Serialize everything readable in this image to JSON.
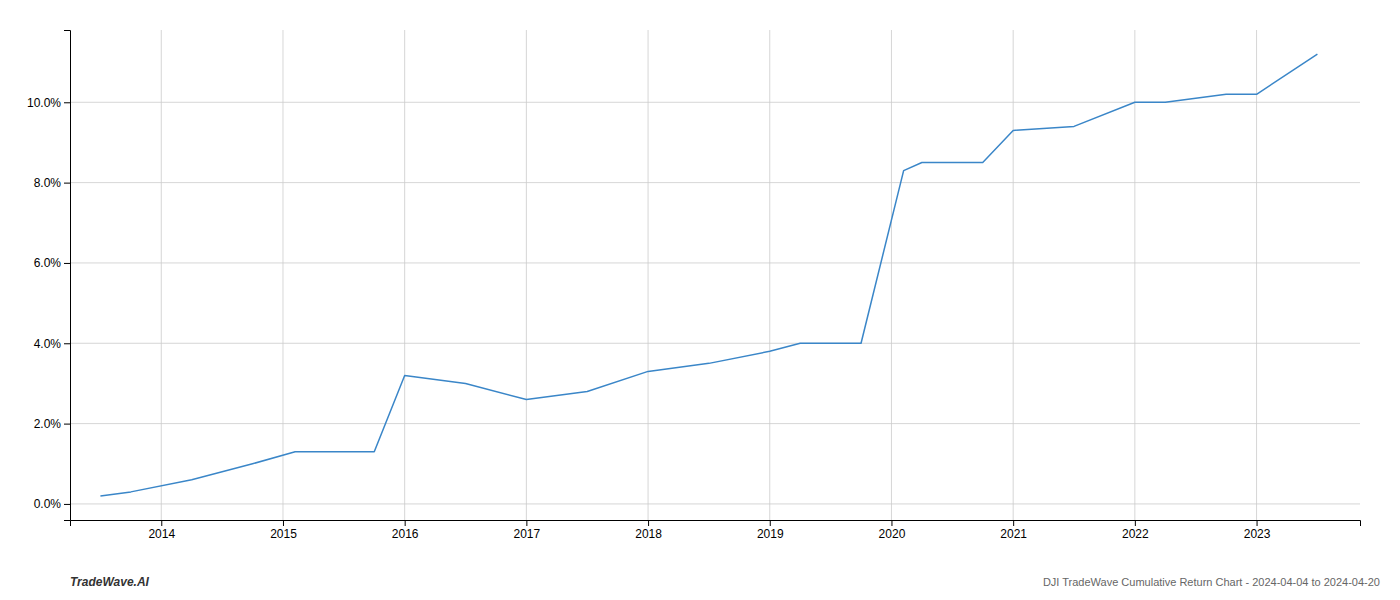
{
  "chart_data": {
    "type": "line",
    "title": "DJI TradeWave Cumulative Return Chart - 2024-04-04 to 2024-04-20",
    "annotations": [
      "TradeWave.AI"
    ],
    "x": [
      2013.5,
      2013.75,
      2014.25,
      2014.75,
      2015.1,
      2015.75,
      2016.0,
      2016.5,
      2017.0,
      2017.5,
      2018.0,
      2018.5,
      2019.0,
      2019.25,
      2019.6,
      2019.75,
      2020.1,
      2020.25,
      2020.75,
      2021.0,
      2021.5,
      2022.0,
      2022.25,
      2022.75,
      2023.0,
      2023.5
    ],
    "values": [
      0.002,
      0.003,
      0.006,
      0.01,
      0.013,
      0.013,
      0.032,
      0.03,
      0.026,
      0.028,
      0.033,
      0.035,
      0.038,
      0.04,
      0.04,
      0.04,
      0.083,
      0.085,
      0.085,
      0.093,
      0.094,
      0.1,
      0.1,
      0.102,
      0.102,
      0.112
    ],
    "color": "#3a86c8",
    "xlim": [
      2013.25,
      2023.85
    ],
    "ylim": [
      -0.004,
      0.118
    ],
    "xticks": [
      2014,
      2015,
      2016,
      2017,
      2018,
      2019,
      2020,
      2021,
      2022,
      2023
    ],
    "yticks": [
      {
        "value": 0.0,
        "label": "0.0%"
      },
      {
        "value": 0.02,
        "label": "2.0%"
      },
      {
        "value": 0.04,
        "label": "4.0%"
      },
      {
        "value": 0.06,
        "label": "6.0%"
      },
      {
        "value": 0.08,
        "label": "8.0%"
      },
      {
        "value": 0.1,
        "label": "10.0%"
      }
    ],
    "grid": true
  }
}
